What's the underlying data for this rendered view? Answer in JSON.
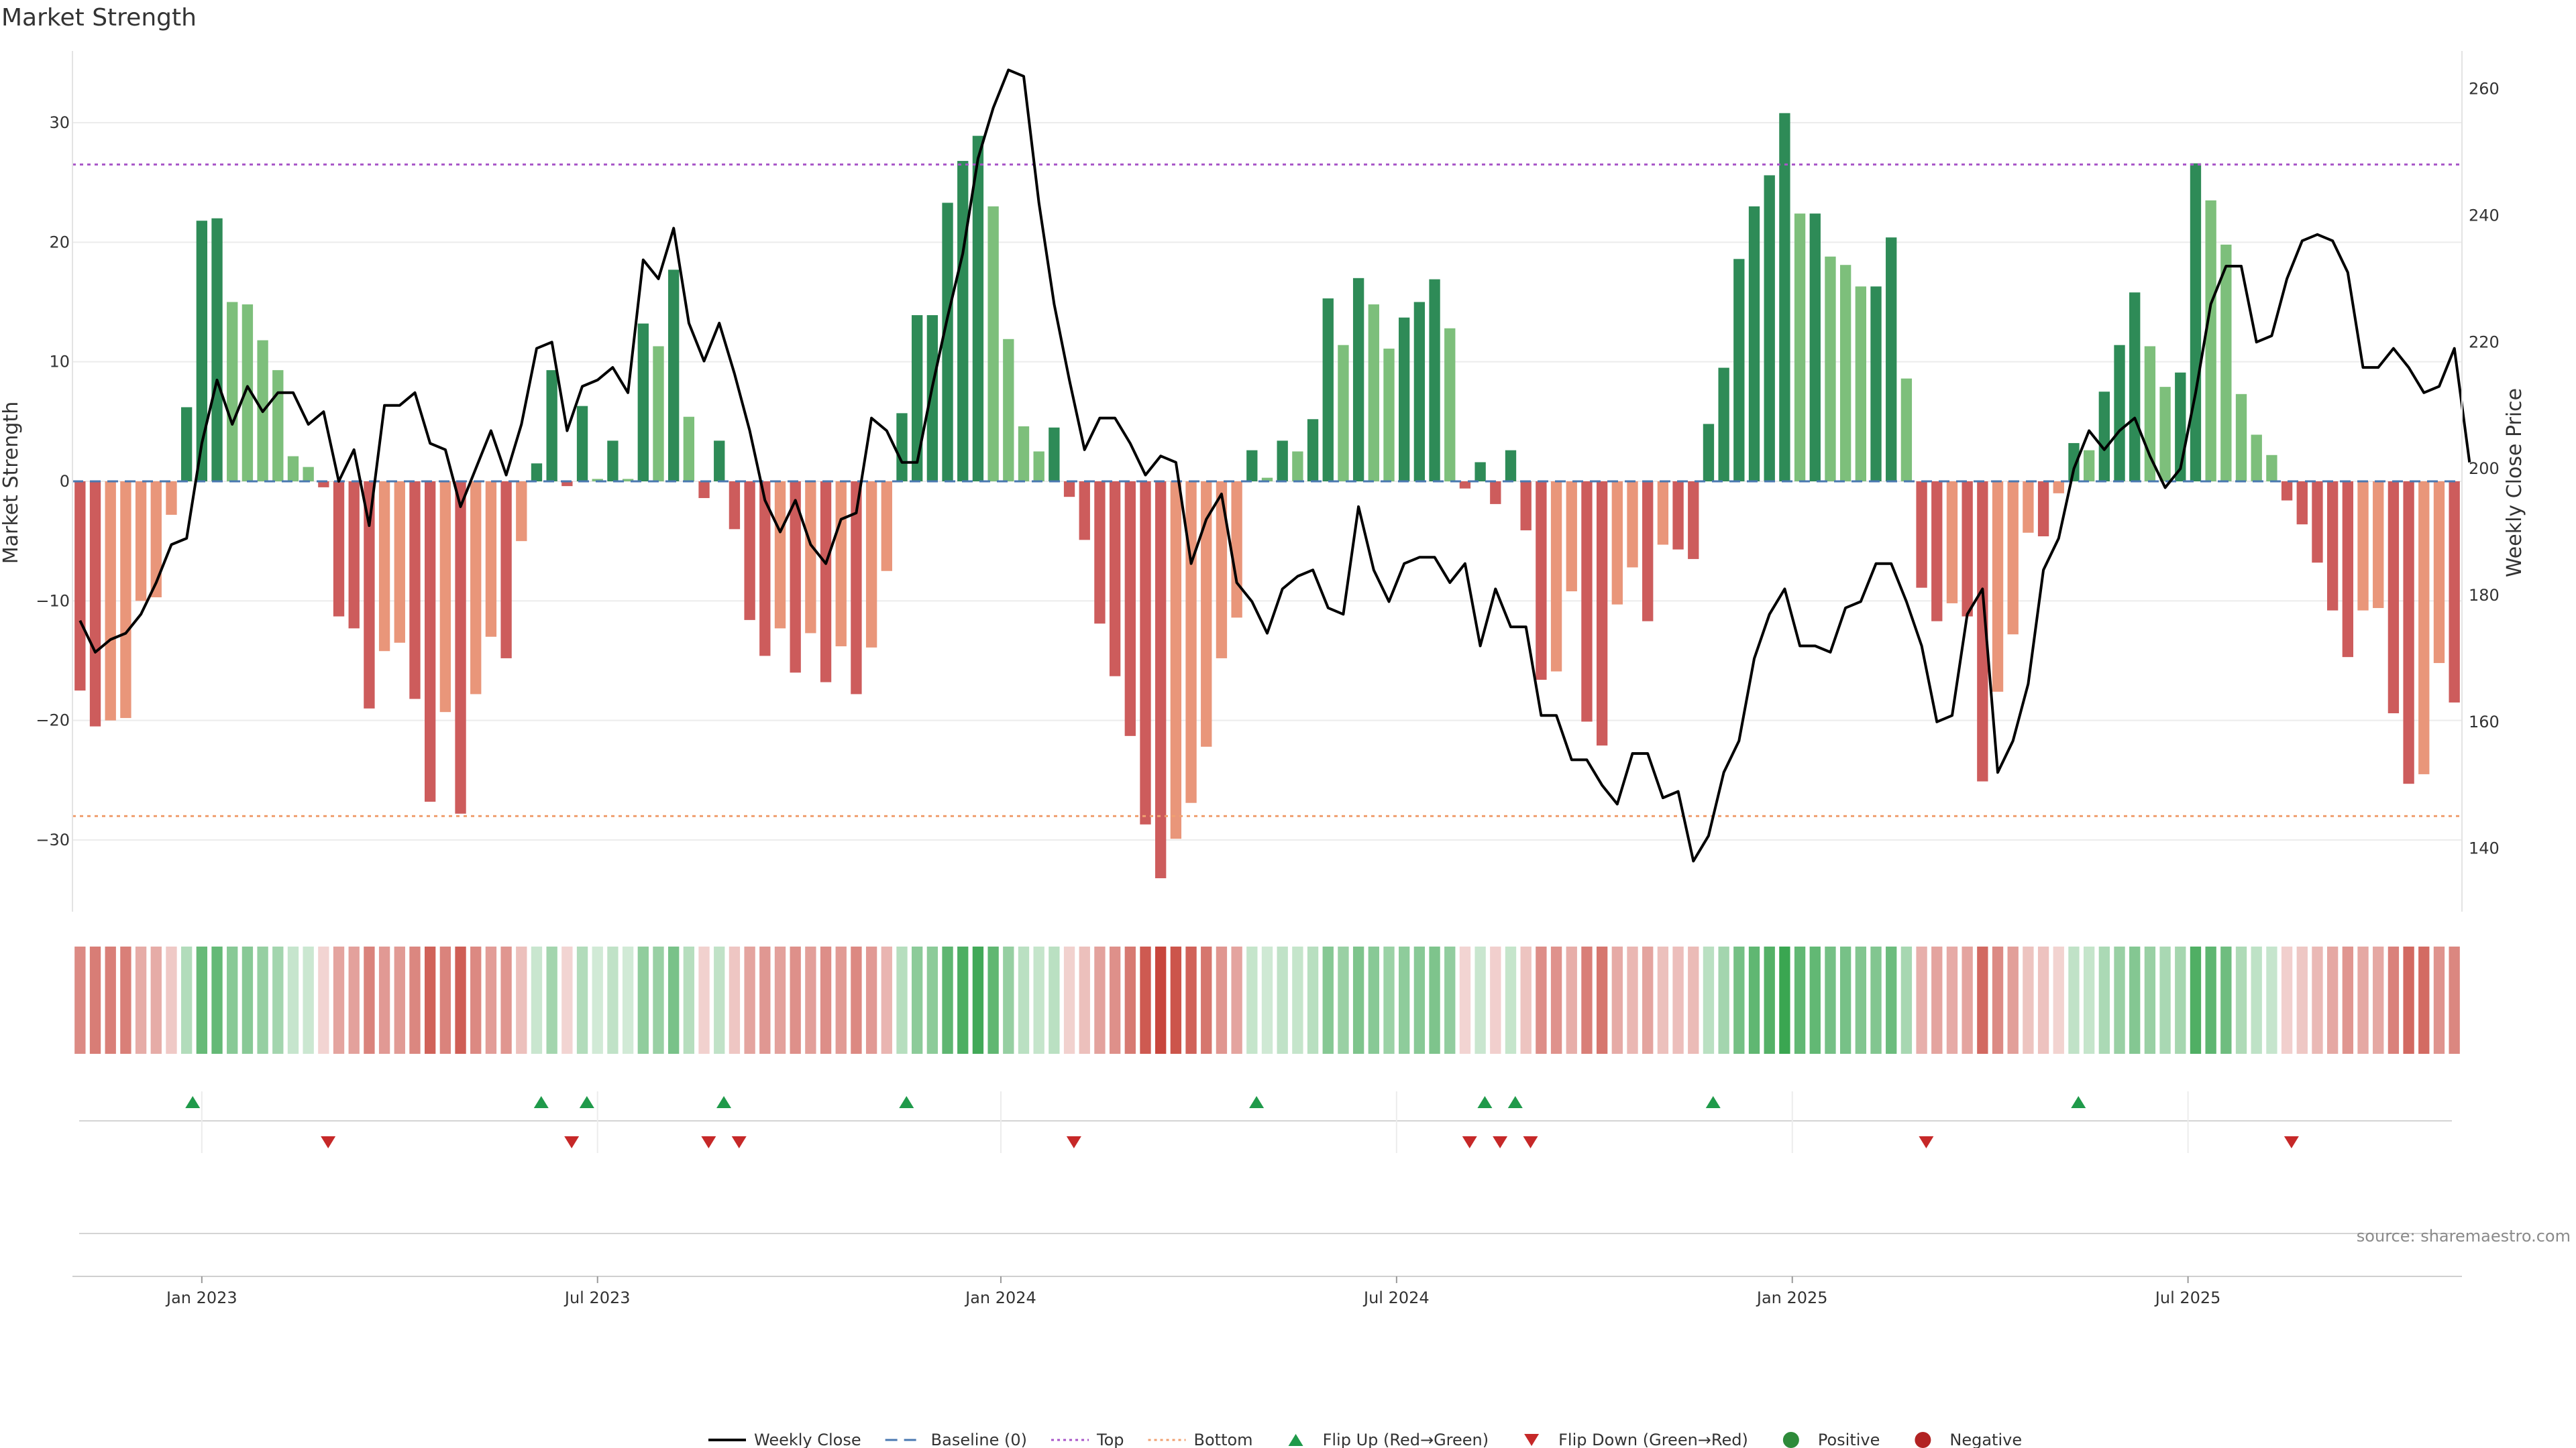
{
  "chart_data": {
    "type": "bar",
    "title": "Market Strength",
    "ylabel_left": "Market Strength",
    "ylabel_right": "Weekly Close Price",
    "source": "source: sharemaestro.com",
    "x_ticks": [
      "Jan 2023",
      "Jul 2023",
      "Jan 2024",
      "Jul 2024",
      "Jan 2025",
      "Jul 2025"
    ],
    "x_tick_weeks": [
      8,
      34,
      60.5,
      86.5,
      112.5,
      138.5
    ],
    "ylim_left": [
      -36,
      36
    ],
    "ylim_right": [
      130,
      266
    ],
    "yticks_left": [
      30,
      20,
      10,
      0,
      -10,
      -20,
      -30
    ],
    "yticks_right": [
      260,
      240,
      220,
      200,
      180,
      160,
      140
    ],
    "top_line": 26.5,
    "bottom_line": -28,
    "colors": {
      "strong_green": "#2e8b57",
      "light_green": "#7dbf7b",
      "strong_red": "#cd5c5c",
      "light_red": "#e9967a",
      "price_line": "#000000",
      "baseline": "#4a78b0",
      "top": "#a855c8",
      "bottom": "#f0a070",
      "flip_up": "#1f9a4a",
      "flip_down": "#c62828"
    },
    "strength": [
      -17.5,
      -20.5,
      -20,
      -19.8,
      -10,
      -9.7,
      -2.8,
      6.2,
      21.8,
      22,
      15,
      14.8,
      11.8,
      9.3,
      2.1,
      1.2,
      -0.5,
      -11.3,
      -12.3,
      -19,
      -14.2,
      -13.5,
      -18.2,
      -26.8,
      -19.3,
      -27.8,
      -17.8,
      -13,
      -14.8,
      -5,
      1.5,
      9.3,
      -0.4,
      6.3,
      0.2,
      3.4,
      0.2,
      13.2,
      11.3,
      17.7,
      5.4,
      -1.4,
      3.4,
      -4,
      -11.6,
      -14.6,
      -12.3,
      -16,
      -12.7,
      -16.8,
      -13.8,
      -17.8,
      -13.9,
      -7.5,
      5.7,
      13.9,
      13.9,
      23.3,
      26.8,
      28.9,
      23,
      11.9,
      4.6,
      2.5,
      4.5,
      -1.3,
      -4.9,
      -11.9,
      -16.3,
      -21.3,
      -28.7,
      -33.2,
      -29.9,
      -26.9,
      -22.2,
      -14.8,
      -11.4,
      2.6,
      0.3,
      3.4,
      2.5,
      5.2,
      15.3,
      11.4,
      17,
      14.8,
      11.1,
      13.7,
      15,
      16.9,
      12.8,
      -0.6,
      1.6,
      -1.9,
      2.6,
      -4.1,
      -16.6,
      -15.9,
      -9.2,
      -20.1,
      -22.1,
      -10.3,
      -7.2,
      -11.7,
      -5.3,
      -5.7,
      -6.5,
      4.8,
      9.5,
      18.6,
      23,
      25.6,
      30.8,
      22.4,
      22.4,
      18.8,
      18.1,
      16.3,
      16.3,
      20.4,
      8.6,
      -8.9,
      -11.7,
      -10.2,
      -11.3,
      -25.1,
      -17.6,
      -12.8,
      -4.3,
      -4.6,
      -1,
      3.2,
      2.6,
      7.5,
      11.4,
      15.8,
      11.3,
      7.9,
      9.1,
      26.6,
      23.5,
      19.8,
      7.3,
      3.9,
      2.2,
      -1.6,
      -3.6,
      -6.8,
      -10.8,
      -14.7,
      -10.8,
      -10.6,
      -19.4,
      -25.3,
      -24.5,
      -15.2,
      -18.5
    ],
    "price": [
      176,
      171,
      173,
      174,
      177,
      182,
      188,
      189,
      204,
      214,
      207,
      213,
      209,
      212,
      212,
      207,
      209,
      198,
      203,
      191,
      210,
      210,
      212,
      204,
      203,
      194,
      200,
      206,
      199,
      207,
      219,
      220,
      206,
      213,
      214,
      216,
      212,
      233,
      230,
      238,
      223,
      217,
      223,
      215,
      206,
      195,
      190,
      195,
      188,
      185,
      192,
      193,
      208,
      206,
      201,
      201,
      213,
      224,
      234,
      249,
      257,
      263,
      262,
      242,
      226,
      214,
      203,
      208,
      208,
      204,
      199,
      202,
      201,
      185,
      192,
      196,
      182,
      179,
      174,
      181,
      183,
      184,
      178,
      177,
      194,
      184,
      179,
      185,
      186,
      186,
      182,
      185,
      172,
      181,
      175,
      175,
      161,
      161,
      154,
      154,
      150,
      147,
      155,
      155,
      148,
      149,
      138,
      142,
      152,
      157,
      170,
      177,
      181,
      172,
      172,
      171,
      178,
      179,
      185,
      185,
      179,
      172,
      160,
      161,
      177,
      181,
      152,
      157,
      166,
      184,
      189,
      200,
      206,
      203,
      206,
      208,
      202,
      197,
      200,
      212,
      226,
      232,
      232,
      220,
      221,
      230,
      236,
      237,
      236,
      231,
      216,
      216,
      219,
      216,
      212,
      213,
      219,
      201
    ],
    "flip_up_weeks": [
      7.4,
      30.3,
      33.3,
      42.3,
      54.3,
      77.3,
      92.3,
      94.3,
      107.3,
      131.3
    ],
    "flip_down_weeks": [
      16.3,
      32.3,
      41.3,
      43.3,
      65.3,
      91.3,
      93.3,
      95.3,
      121.3,
      145.3
    ]
  },
  "legend": [
    {
      "label": "Weekly Close",
      "kind": "line",
      "color": "#000000"
    },
    {
      "label": "Baseline (0)",
      "kind": "dash",
      "color": "#4a78b0"
    },
    {
      "label": "Top",
      "kind": "dot",
      "color": "#a855c8"
    },
    {
      "label": "Bottom",
      "kind": "dot",
      "color": "#f0a070"
    },
    {
      "label": "Flip Up (Red→Green)",
      "kind": "up",
      "color": "#1f9a4a"
    },
    {
      "label": "Flip Down (Green→Red)",
      "kind": "down",
      "color": "#c62828"
    },
    {
      "label": "Positive",
      "kind": "circle",
      "color": "#2e8b3a"
    },
    {
      "label": "Negative",
      "kind": "circle",
      "color": "#b22222"
    }
  ]
}
